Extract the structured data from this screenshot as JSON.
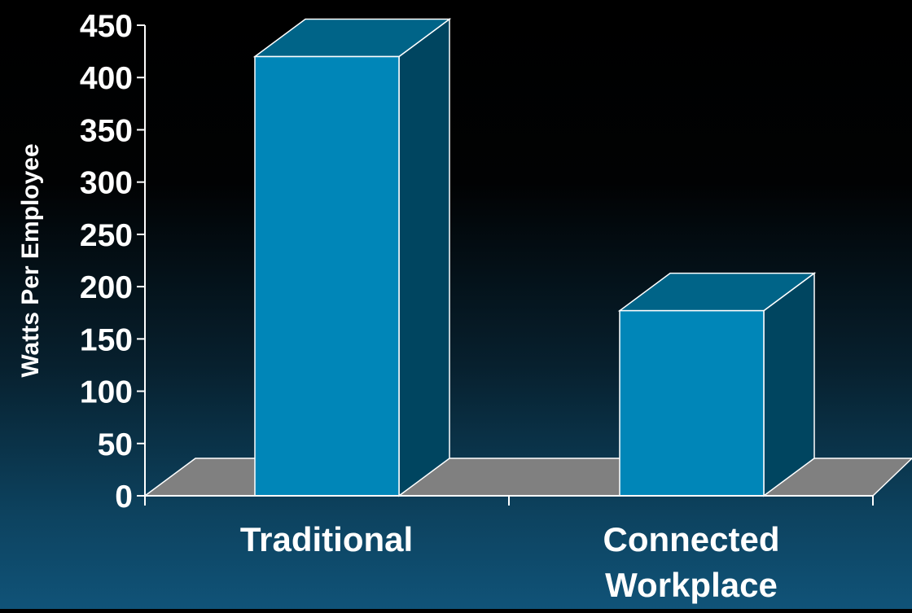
{
  "chart_data": {
    "type": "bar",
    "style": "3d",
    "title": "",
    "xlabel": "",
    "ylabel": "Watts Per Employee",
    "categories": [
      [
        "Traditional"
      ],
      [
        "Connected",
        "Workplace"
      ]
    ],
    "values": [
      420,
      177
    ],
    "ylim": [
      0,
      450
    ],
    "yticks": [
      "0",
      "50",
      "100",
      "150",
      "200",
      "250",
      "300",
      "350",
      "400",
      "450"
    ],
    "grid": false,
    "legend": "none",
    "colors": {
      "bar_front": "#0086b8",
      "bar_side": "#004560",
      "bar_top": "#006488",
      "floor": "#808080",
      "axis": "#ffffff"
    }
  }
}
